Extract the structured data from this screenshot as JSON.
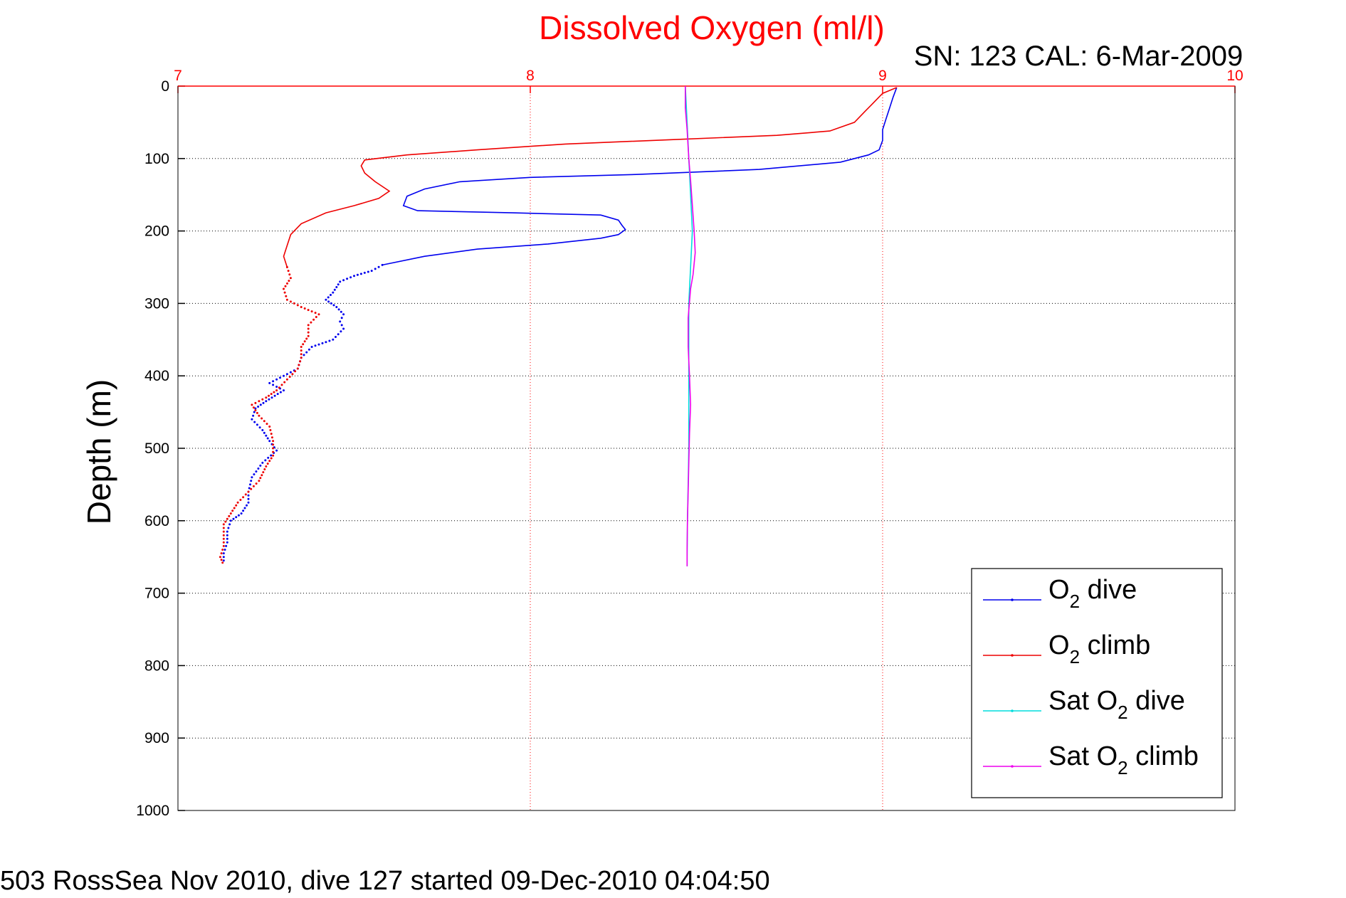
{
  "chart_data": {
    "type": "line",
    "title": "Dissolved Oxygen (ml/l)",
    "subtitle": "SN: 123  CAL: 6-Mar-2009",
    "ylabel": "Depth (m)",
    "xlim": [
      7,
      10
    ],
    "ylim": [
      0,
      1000
    ],
    "y_reversed": true,
    "x_axis_position": "top",
    "xticks": [
      7,
      8,
      9,
      10
    ],
    "yticks": [
      0,
      100,
      200,
      300,
      400,
      500,
      600,
      700,
      800,
      900,
      1000
    ],
    "grid": true,
    "legend_position": "bottom-right",
    "colors": {
      "title": "#ff0000",
      "x_axis": "#ff0000",
      "grid": "#888888"
    },
    "series": [
      {
        "name": "O2 dive",
        "legend_main": "O",
        "legend_sub": "2",
        "legend_rest": " dive",
        "color": "#0000ee",
        "dotted_below_depth": 250,
        "points": [
          [
            9.04,
            2
          ],
          [
            9.03,
            15
          ],
          [
            9.02,
            30
          ],
          [
            9.01,
            45
          ],
          [
            9.0,
            60
          ],
          [
            9.0,
            75
          ],
          [
            8.99,
            88
          ],
          [
            8.96,
            95
          ],
          [
            8.88,
            105
          ],
          [
            8.65,
            115
          ],
          [
            8.3,
            122
          ],
          [
            8.0,
            126
          ],
          [
            7.8,
            132
          ],
          [
            7.7,
            142
          ],
          [
            7.65,
            152
          ],
          [
            7.64,
            165
          ],
          [
            7.68,
            172
          ],
          [
            7.95,
            175
          ],
          [
            8.2,
            178
          ],
          [
            8.25,
            185
          ],
          [
            8.26,
            192
          ],
          [
            8.27,
            198
          ],
          [
            8.25,
            205
          ],
          [
            8.2,
            210
          ],
          [
            8.05,
            218
          ],
          [
            7.85,
            225
          ],
          [
            7.7,
            235
          ],
          [
            7.58,
            247
          ],
          [
            7.55,
            255
          ],
          [
            7.5,
            262
          ],
          [
            7.46,
            270
          ],
          [
            7.44,
            285
          ],
          [
            7.42,
            295
          ],
          [
            7.45,
            305
          ],
          [
            7.47,
            315
          ],
          [
            7.46,
            325
          ],
          [
            7.47,
            335
          ],
          [
            7.44,
            350
          ],
          [
            7.38,
            360
          ],
          [
            7.35,
            375
          ],
          [
            7.34,
            390
          ],
          [
            7.3,
            400
          ],
          [
            7.26,
            410
          ],
          [
            7.3,
            420
          ],
          [
            7.25,
            435
          ],
          [
            7.22,
            445
          ],
          [
            7.21,
            460
          ],
          [
            7.24,
            475
          ],
          [
            7.26,
            490
          ],
          [
            7.28,
            503
          ],
          [
            7.24,
            520
          ],
          [
            7.21,
            540
          ],
          [
            7.2,
            560
          ],
          [
            7.2,
            575
          ],
          [
            7.18,
            590
          ],
          [
            7.15,
            600
          ],
          [
            7.14,
            615
          ],
          [
            7.14,
            630
          ],
          [
            7.13,
            645
          ],
          [
            7.13,
            660
          ]
        ]
      },
      {
        "name": "O2 climb",
        "legend_main": "O",
        "legend_sub": "2",
        "legend_rest": " climb",
        "color": "#ee0000",
        "dotted_below_depth": 260,
        "points": [
          [
            9.04,
            2
          ],
          [
            9.0,
            10
          ],
          [
            8.97,
            25
          ],
          [
            8.95,
            35
          ],
          [
            8.92,
            50
          ],
          [
            8.85,
            62
          ],
          [
            8.7,
            68
          ],
          [
            8.4,
            74
          ],
          [
            8.1,
            80
          ],
          [
            7.85,
            88
          ],
          [
            7.65,
            95
          ],
          [
            7.53,
            102
          ],
          [
            7.52,
            110
          ],
          [
            7.53,
            120
          ],
          [
            7.56,
            132
          ],
          [
            7.6,
            145
          ],
          [
            7.57,
            155
          ],
          [
            7.5,
            165
          ],
          [
            7.42,
            175
          ],
          [
            7.35,
            190
          ],
          [
            7.32,
            205
          ],
          [
            7.31,
            220
          ],
          [
            7.3,
            235
          ],
          [
            7.31,
            250
          ],
          [
            7.32,
            265
          ],
          [
            7.3,
            280
          ],
          [
            7.31,
            295
          ],
          [
            7.35,
            305
          ],
          [
            7.4,
            315
          ],
          [
            7.37,
            330
          ],
          [
            7.37,
            345
          ],
          [
            7.35,
            360
          ],
          [
            7.35,
            375
          ],
          [
            7.34,
            390
          ],
          [
            7.31,
            405
          ],
          [
            7.28,
            420
          ],
          [
            7.25,
            430
          ],
          [
            7.21,
            440
          ],
          [
            7.23,
            455
          ],
          [
            7.26,
            470
          ],
          [
            7.27,
            490
          ],
          [
            7.27,
            510
          ],
          [
            7.25,
            525
          ],
          [
            7.23,
            545
          ],
          [
            7.2,
            560
          ],
          [
            7.17,
            575
          ],
          [
            7.15,
            590
          ],
          [
            7.13,
            605
          ],
          [
            7.13,
            620
          ],
          [
            7.13,
            635
          ],
          [
            7.12,
            650
          ],
          [
            7.13,
            662
          ]
        ]
      },
      {
        "name": "Sat O2 dive",
        "legend_main": "Sat O",
        "legend_sub": "2",
        "legend_rest": " dive",
        "color": "#00dddd",
        "dotted_below_depth": null,
        "points": [
          [
            8.44,
            0
          ],
          [
            8.445,
            50
          ],
          [
            8.45,
            100
          ],
          [
            8.455,
            150
          ],
          [
            8.46,
            200
          ],
          [
            8.455,
            250
          ],
          [
            8.45,
            300
          ],
          [
            8.45,
            350
          ],
          [
            8.45,
            400
          ],
          [
            8.45,
            450
          ],
          [
            8.45,
            500
          ],
          [
            8.448,
            550
          ],
          [
            8.446,
            600
          ],
          [
            8.445,
            650
          ],
          [
            8.445,
            663
          ]
        ]
      },
      {
        "name": "Sat O2 climb",
        "legend_main": "Sat O",
        "legend_sub": "2",
        "legend_rest": " climb",
        "color": "#ee00ee",
        "dotted_below_depth": null,
        "points": [
          [
            8.44,
            0
          ],
          [
            8.44,
            30
          ],
          [
            8.445,
            60
          ],
          [
            8.45,
            100
          ],
          [
            8.455,
            130
          ],
          [
            8.465,
            200
          ],
          [
            8.468,
            230
          ],
          [
            8.462,
            260
          ],
          [
            8.455,
            280
          ],
          [
            8.448,
            320
          ],
          [
            8.448,
            360
          ],
          [
            8.452,
            400
          ],
          [
            8.455,
            440
          ],
          [
            8.452,
            480
          ],
          [
            8.45,
            520
          ],
          [
            8.448,
            560
          ],
          [
            8.446,
            600
          ],
          [
            8.445,
            640
          ],
          [
            8.445,
            663
          ]
        ]
      }
    ]
  },
  "footer": "503 RossSea Nov 2010, dive 127 started 09-Dec-2010 04:04:50"
}
